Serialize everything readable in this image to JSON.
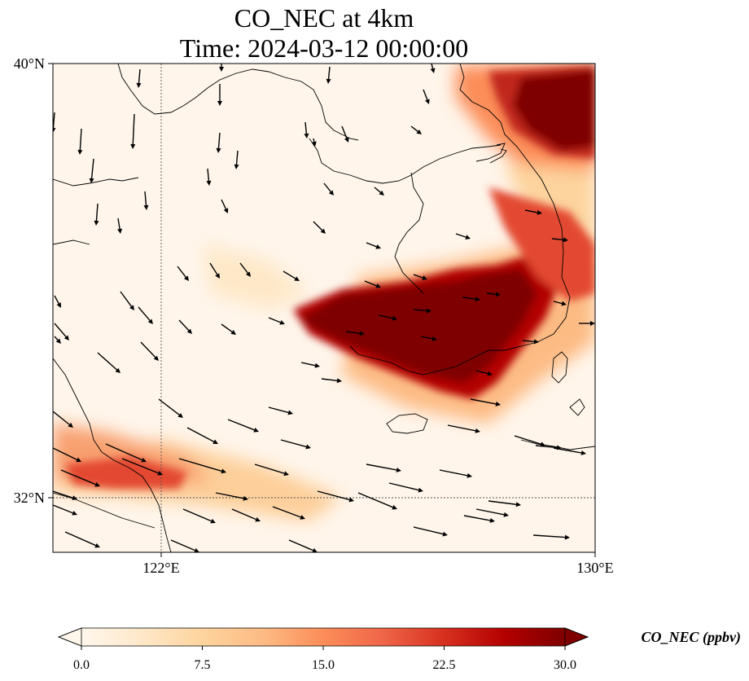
{
  "map": {
    "title_line1": "CO_NEC at 4km",
    "title_line2": "Time: 2024-03-12 00:00:00",
    "lat_range": [
      31,
      40
    ],
    "lon_range": [
      120,
      130
    ],
    "lat_ticks": [
      {
        "value": 40,
        "label": "40°N"
      },
      {
        "value": 32,
        "label": "32°N"
      }
    ],
    "lon_ticks": [
      {
        "value": 122,
        "label": "122°E"
      },
      {
        "value": 130,
        "label": "130°E"
      }
    ],
    "gridlines": {
      "lat": 32,
      "lon": 122
    },
    "wind_vectors": "arrows showing wind direction across the domain"
  },
  "colorbar": {
    "label": "CO_NEC (ppbv)",
    "vmin": 0.0,
    "vmax": 30.0,
    "ticks": [
      "0.0",
      "7.5",
      "15.0",
      "22.5",
      "30.0"
    ],
    "colormap": "OrRd",
    "stops": [
      "#fff7ec",
      "#fee8c8",
      "#fdd49e",
      "#fdbb84",
      "#fc8d59",
      "#ef6548",
      "#d7301f",
      "#b30000",
      "#7f0000"
    ],
    "extend": "both"
  }
}
